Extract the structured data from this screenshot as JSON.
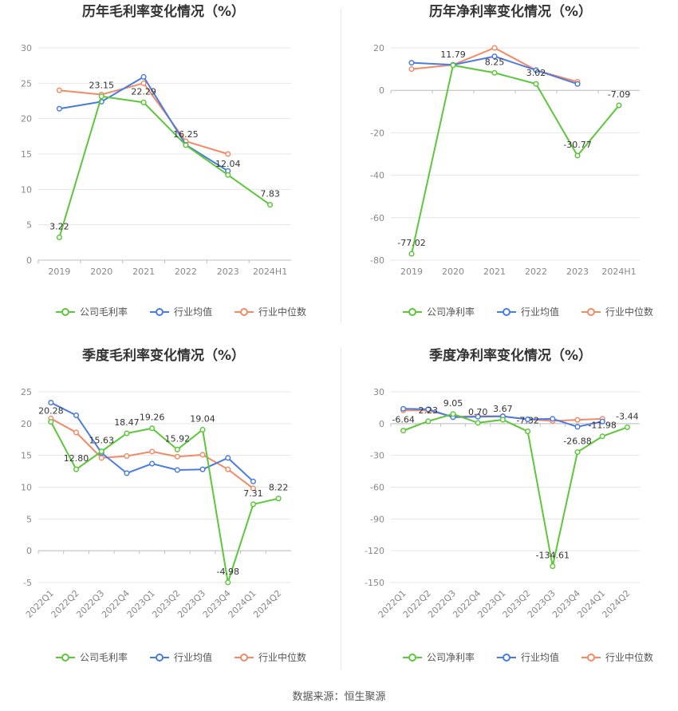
{
  "source": "数据来源：恒生聚源",
  "colors": {
    "company": "#5cc73a",
    "industry_avg": "#4a7be0",
    "industry_median": "#f28a66",
    "grid": "#e6e6e6",
    "axis_text": "#888888",
    "title": "#333333"
  },
  "chart_data": [
    {
      "type": "line",
      "title": "历年毛利率变化情况（%）",
      "categories": [
        "2019",
        "2020",
        "2021",
        "2022",
        "2023",
        "2024H1"
      ],
      "ylim": [
        0,
        30
      ],
      "yticks": [
        0,
        5,
        10,
        15,
        20,
        25,
        30
      ],
      "rotate_x": false,
      "series": [
        {
          "name": "公司毛利率",
          "key": "company",
          "values": [
            3.22,
            23.15,
            22.29,
            16.25,
            12.04,
            7.83
          ]
        },
        {
          "name": "行业均值",
          "key": "industry_avg",
          "values": [
            21.4,
            22.4,
            25.9,
            16.3,
            12.6,
            null
          ]
        },
        {
          "name": "行业中位数",
          "key": "industry_median",
          "values": [
            24.0,
            23.4,
            25.0,
            16.8,
            15.0,
            null
          ]
        }
      ],
      "labels": [
        "3.22",
        "23.15",
        "22.29",
        "16.25",
        "12.04",
        "7.83"
      ]
    },
    {
      "type": "line",
      "title": "历年净利率变化情况（%）",
      "categories": [
        "2019",
        "2020",
        "2021",
        "2022",
        "2023",
        "2024H1"
      ],
      "ylim": [
        -80,
        20
      ],
      "yticks": [
        -80,
        -60,
        -40,
        -20,
        0,
        20
      ],
      "rotate_x": false,
      "series": [
        {
          "name": "公司净利率",
          "key": "company",
          "values": [
            -77.02,
            11.79,
            8.25,
            3.02,
            -30.77,
            -7.09
          ]
        },
        {
          "name": "行业均值",
          "key": "industry_avg",
          "values": [
            13.0,
            12.0,
            16.0,
            9.5,
            3.0,
            null
          ]
        },
        {
          "name": "行业中位数",
          "key": "industry_median",
          "values": [
            10.0,
            12.0,
            20.0,
            9.5,
            4.0,
            null
          ]
        }
      ],
      "labels": [
        "-77.02",
        "11.79",
        "8.25",
        "3.02",
        "-30.77",
        "-7.09"
      ]
    },
    {
      "type": "line",
      "title": "季度毛利率变化情况（%）",
      "categories": [
        "2022Q1",
        "2022Q2",
        "2022Q3",
        "2022Q4",
        "2023Q1",
        "2023Q2",
        "2023Q3",
        "2023Q4",
        "2024Q1",
        "2024Q2"
      ],
      "ylim": [
        -5,
        25
      ],
      "yticks": [
        -5,
        0,
        5,
        10,
        15,
        20,
        25
      ],
      "rotate_x": true,
      "series": [
        {
          "name": "公司毛利率",
          "key": "company",
          "values": [
            20.28,
            12.8,
            15.63,
            18.47,
            19.26,
            15.92,
            19.04,
            -4.98,
            7.31,
            8.22
          ]
        },
        {
          "name": "行业均值",
          "key": "industry_avg",
          "values": [
            23.3,
            21.3,
            15.4,
            12.2,
            13.7,
            12.7,
            12.8,
            14.6,
            10.9,
            null
          ]
        },
        {
          "name": "行业中位数",
          "key": "industry_median",
          "values": [
            20.8,
            18.6,
            14.6,
            14.9,
            15.6,
            14.8,
            15.1,
            12.8,
            9.8,
            null
          ]
        }
      ],
      "labels": [
        "20.28",
        "12.80",
        "15.63",
        "18.47",
        "19.26",
        "15.92",
        "19.04",
        "-4.98",
        "7.31",
        "8.22"
      ]
    },
    {
      "type": "line",
      "title": "季度净利率变化情况（%）",
      "categories": [
        "2022Q1",
        "2022Q2",
        "2022Q3",
        "2022Q4",
        "2023Q1",
        "2023Q2",
        "2023Q3",
        "2023Q4",
        "2024Q1",
        "2024Q2"
      ],
      "ylim": [
        -150,
        30
      ],
      "yticks": [
        -150,
        -120,
        -90,
        -60,
        -30,
        0,
        30
      ],
      "rotate_x": true,
      "series": [
        {
          "name": "公司净利率",
          "key": "company",
          "values": [
            -6.64,
            2.23,
            9.05,
            0.7,
            3.67,
            -7.32,
            -134.61,
            -26.88,
            -11.98,
            -3.44
          ]
        },
        {
          "name": "行业均值",
          "key": "industry_avg",
          "values": [
            14.0,
            13.5,
            6.0,
            6.5,
            6.8,
            4.0,
            4.5,
            -3.0,
            2.0,
            null
          ]
        },
        {
          "name": "行业中位数",
          "key": "industry_median",
          "values": [
            12.5,
            12.5,
            6.5,
            7.0,
            7.0,
            4.0,
            2.5,
            3.5,
            4.5,
            null
          ]
        }
      ],
      "labels": [
        "-6.64",
        "2.23",
        "9.05",
        "0.70",
        "3.67",
        "-7.32",
        "-134.61",
        "-26.88",
        "-11.98",
        "-3.44"
      ]
    }
  ]
}
